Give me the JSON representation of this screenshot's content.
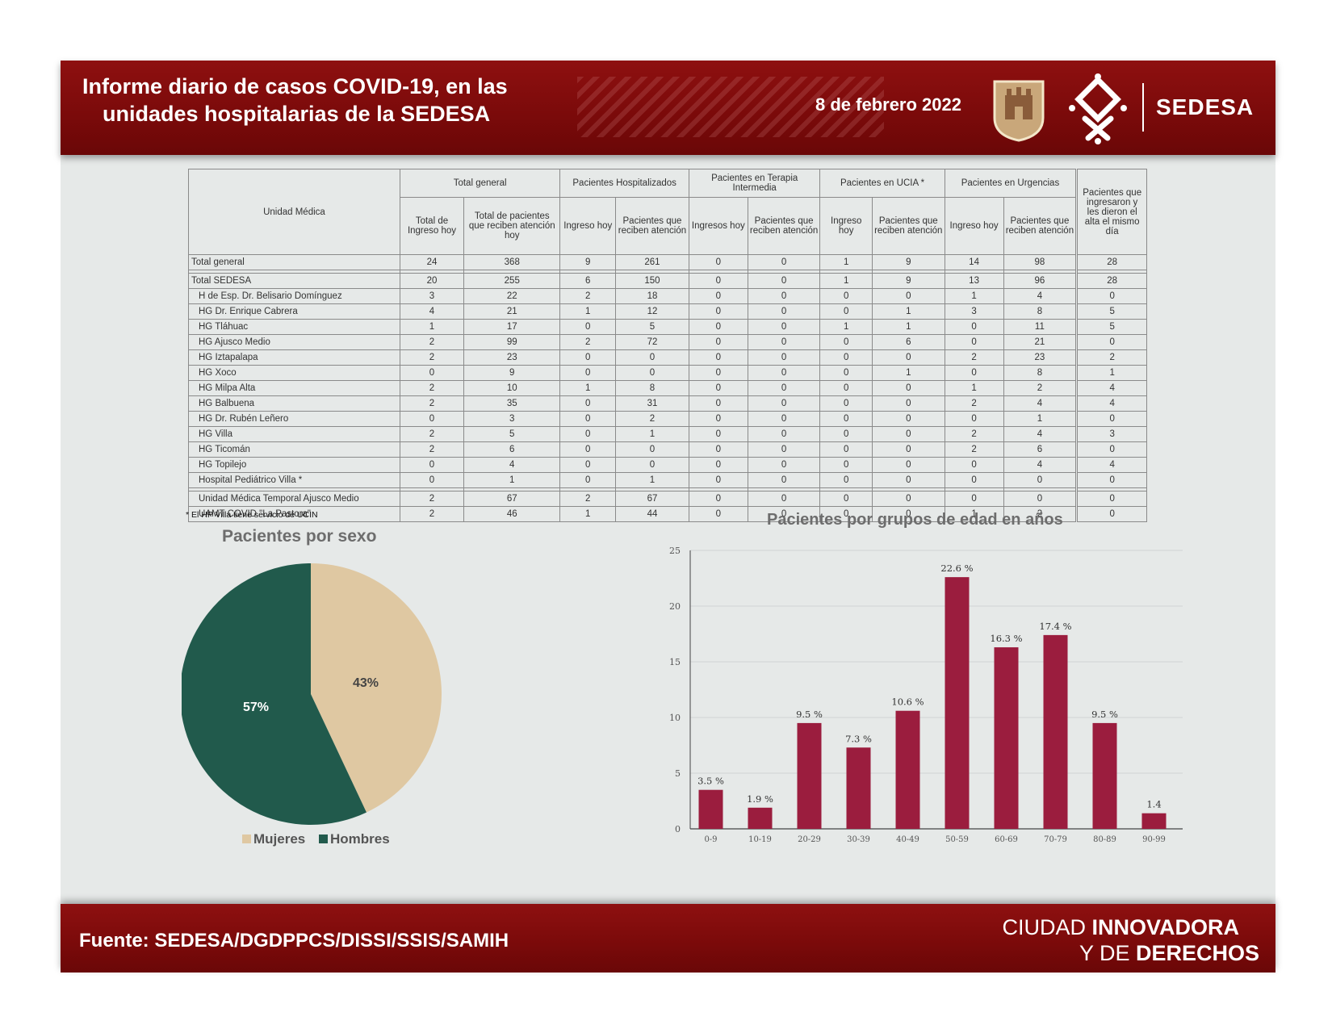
{
  "header": {
    "title_line1": "Informe diario de casos COVID-19, en las",
    "title_line2": "unidades  hospitalarias de la SEDESA",
    "date": "8 de febrero 2022",
    "brand": "SEDESA"
  },
  "footer": {
    "source": "Fuente: SEDESA/DGDPPCS/DISSI/SSIS/SAMIH",
    "tagline_light1": "CIUDAD ",
    "tagline_bold1": "INNOVADORA",
    "tagline_light2": "Y DE ",
    "tagline_bold2": "DERECHOS"
  },
  "table": {
    "headers": {
      "unidad": "Unidad Médica",
      "total_general": "Total general",
      "hospitalizados": "Pacientes Hospitalizados",
      "terapia": "Pacientes en Terapia Intermedia",
      "ucia": "Pacientes en UCIA *",
      "urgencias": "Pacientes en Urgencias",
      "alta": "Pacientes que ingresaron y les dieron el alta el mismo día",
      "total_ingreso": "Total de Ingreso hoy",
      "total_atencion": "Total de pacientes que reciben atención hoy",
      "ingreso_hoy": "Ingreso hoy",
      "ingresos_hoy": "Ingresos hoy",
      "reciben_atencion": "Pacientes que reciben atención"
    },
    "rows": [
      [
        "Total general",
        "24",
        "368",
        "9",
        "261",
        "0",
        "0",
        "1",
        "9",
        "14",
        "98",
        "28"
      ],
      [
        "Total SEDESA",
        "20",
        "255",
        "6",
        "150",
        "0",
        "0",
        "1",
        "9",
        "13",
        "96",
        "28"
      ],
      [
        "H de Esp. Dr. Belisario Domínguez",
        "3",
        "22",
        "2",
        "18",
        "0",
        "0",
        "0",
        "0",
        "1",
        "4",
        "0"
      ],
      [
        "HG Dr. Enrique Cabrera",
        "4",
        "21",
        "1",
        "12",
        "0",
        "0",
        "0",
        "1",
        "3",
        "8",
        "5"
      ],
      [
        "HG Tláhuac",
        "1",
        "17",
        "0",
        "5",
        "0",
        "0",
        "1",
        "1",
        "0",
        "11",
        "5"
      ],
      [
        "HG Ajusco Medio",
        "2",
        "99",
        "2",
        "72",
        "0",
        "0",
        "0",
        "6",
        "0",
        "21",
        "0"
      ],
      [
        "HG Iztapalapa",
        "2",
        "23",
        "0",
        "0",
        "0",
        "0",
        "0",
        "0",
        "2",
        "23",
        "2"
      ],
      [
        "HG Xoco",
        "0",
        "9",
        "0",
        "0",
        "0",
        "0",
        "0",
        "1",
        "0",
        "8",
        "1"
      ],
      [
        "HG Milpa Alta",
        "2",
        "10",
        "1",
        "8",
        "0",
        "0",
        "0",
        "0",
        "1",
        "2",
        "4"
      ],
      [
        "HG Balbuena",
        "2",
        "35",
        "0",
        "31",
        "0",
        "0",
        "0",
        "0",
        "2",
        "4",
        "4"
      ],
      [
        "HG Dr. Rubén Leñero",
        "0",
        "3",
        "0",
        "2",
        "0",
        "0",
        "0",
        "0",
        "0",
        "1",
        "0"
      ],
      [
        "HG Villa",
        "2",
        "5",
        "0",
        "1",
        "0",
        "0",
        "0",
        "0",
        "2",
        "4",
        "3"
      ],
      [
        "HG Ticomán",
        "2",
        "6",
        "0",
        "0",
        "0",
        "0",
        "0",
        "0",
        "2",
        "6",
        "0"
      ],
      [
        "HG Topilejo",
        "0",
        "4",
        "0",
        "0",
        "0",
        "0",
        "0",
        "0",
        "0",
        "4",
        "4"
      ],
      [
        "Hospital Pediátrico Villa *",
        "0",
        "1",
        "0",
        "1",
        "0",
        "0",
        "0",
        "0",
        "0",
        "0",
        "0"
      ],
      [
        "Unidad Médica Temporal Ajusco Medio",
        "2",
        "67",
        "2",
        "67",
        "0",
        "0",
        "0",
        "0",
        "0",
        "0",
        "0"
      ],
      [
        "UAMT COVID \"La Pastora\"",
        "2",
        "46",
        "1",
        "44",
        "0",
        "0",
        "0",
        "0",
        "1",
        "2",
        "0"
      ]
    ],
    "footnote": "*  El HP Villa tiene servicio de UCIN"
  },
  "chart_data": [
    {
      "type": "pie",
      "title": "Pacientes por sexo",
      "categories": [
        "Mujeres",
        "Hombres"
      ],
      "values": [
        43,
        57
      ],
      "labels": [
        "43%",
        "57%"
      ],
      "colors": [
        "#dfc8a2",
        "#215a4c"
      ],
      "legend": "bottom"
    },
    {
      "type": "bar",
      "title": "Pacientes por grupos de edad en años",
      "categories": [
        "0-9",
        "10-19",
        "20-29",
        "30-39",
        "40-49",
        "50-59",
        "60-69",
        "70-79",
        "80-89",
        "90-99"
      ],
      "values": [
        3.5,
        1.9,
        9.5,
        7.3,
        10.6,
        22.6,
        16.3,
        17.4,
        9.5,
        1.4
      ],
      "data_labels": [
        "3.5 %",
        "1.9 %",
        "9.5 %",
        "7.3 %",
        "10.6 %",
        "22.6 %",
        "16.3 %",
        "17.4 %",
        "9.5 %",
        "1.4"
      ],
      "yticks": [
        "0",
        "5",
        "10",
        "15",
        "20",
        "25"
      ],
      "ylim": [
        0,
        25
      ],
      "grid": true,
      "color": "#9b1d3e"
    }
  ]
}
